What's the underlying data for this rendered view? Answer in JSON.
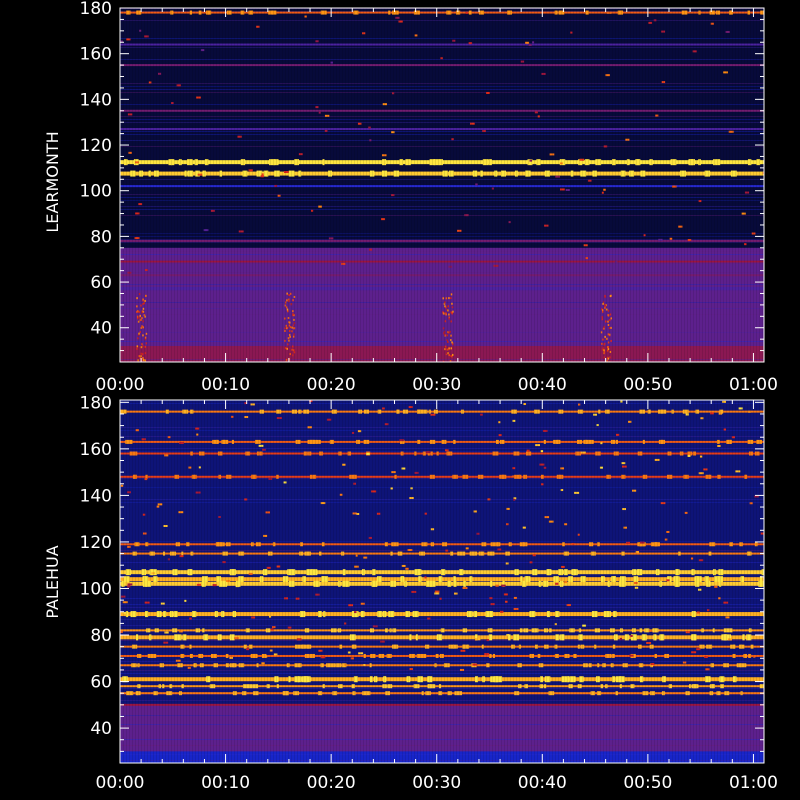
{
  "chart_data": [
    {
      "type": "heatmap",
      "ylabel": "LEARMONTH",
      "xlabel": "",
      "title": "",
      "x_ticks": [
        "00:00",
        "00:10",
        "00:20",
        "00:30",
        "00:40",
        "00:50",
        "01:00"
      ],
      "x_range_minutes": [
        0,
        61
      ],
      "y_ticks": [
        40,
        60,
        80,
        100,
        120,
        140,
        160,
        180
      ],
      "y_range": [
        25,
        180
      ],
      "background": "#070a3a",
      "colormap": [
        "#000010",
        "#0b0e6b",
        "#1a2be0",
        "#9a1540",
        "#e0281a",
        "#ff8c10",
        "#ffe640"
      ],
      "bands": [
        {
          "y": 178,
          "intensity": 0.75
        },
        {
          "y": 164,
          "intensity": 0.4
        },
        {
          "y": 155,
          "intensity": 0.45
        },
        {
          "y": 135,
          "intensity": 0.45
        },
        {
          "y": 127,
          "intensity": 0.4
        },
        {
          "y": 112.5,
          "intensity": 1.0
        },
        {
          "y": 107.5,
          "intensity": 0.95
        },
        {
          "y": 102,
          "intensity": 0.35
        },
        {
          "y": 78,
          "intensity": 0.45
        },
        {
          "y": 69,
          "intensity": 0.5
        },
        {
          "y": 63,
          "intensity": 0.45
        },
        {
          "y": 57,
          "intensity": 0.4
        }
      ],
      "regions": [
        {
          "y0": 25,
          "y1": 75,
          "intensity": 0.42
        },
        {
          "y0": 25,
          "y1": 32,
          "intensity": 0.48
        }
      ],
      "bursts_minutes": [
        2,
        16,
        31,
        46
      ]
    },
    {
      "type": "heatmap",
      "ylabel": "PALEHUA",
      "xlabel": "",
      "title": "",
      "x_ticks": [
        "00:00",
        "00:10",
        "00:20",
        "00:30",
        "00:40",
        "00:50",
        "01:00"
      ],
      "x_range_minutes": [
        0,
        61
      ],
      "y_ticks": [
        40,
        60,
        80,
        100,
        120,
        140,
        160,
        180
      ],
      "y_range": [
        25,
        181
      ],
      "background": "#0e1478",
      "colormap": [
        "#000010",
        "#0b0e6b",
        "#1a2be0",
        "#9a1540",
        "#e0281a",
        "#ff8c10",
        "#ffe640"
      ],
      "bands": [
        {
          "y": 176,
          "intensity": 0.8
        },
        {
          "y": 163,
          "intensity": 0.75
        },
        {
          "y": 158,
          "intensity": 0.7
        },
        {
          "y": 148,
          "intensity": 0.7
        },
        {
          "y": 119,
          "intensity": 0.75
        },
        {
          "y": 115,
          "intensity": 0.8
        },
        {
          "y": 107,
          "intensity": 0.95
        },
        {
          "y": 104,
          "intensity": 0.9
        },
        {
          "y": 102,
          "intensity": 0.95
        },
        {
          "y": 89,
          "intensity": 0.9
        },
        {
          "y": 82,
          "intensity": 0.85
        },
        {
          "y": 79,
          "intensity": 0.9
        },
        {
          "y": 75,
          "intensity": 0.8
        },
        {
          "y": 71,
          "intensity": 0.75
        },
        {
          "y": 67,
          "intensity": 0.8
        },
        {
          "y": 61,
          "intensity": 0.9
        },
        {
          "y": 58,
          "intensity": 0.85
        },
        {
          "y": 55,
          "intensity": 0.8
        },
        {
          "y": 50,
          "intensity": 0.5
        }
      ],
      "regions": [
        {
          "y0": 25,
          "y1": 50,
          "intensity": 0.42
        },
        {
          "y0": 25,
          "y1": 30,
          "intensity": 0.3
        }
      ],
      "bursts_minutes": []
    }
  ]
}
